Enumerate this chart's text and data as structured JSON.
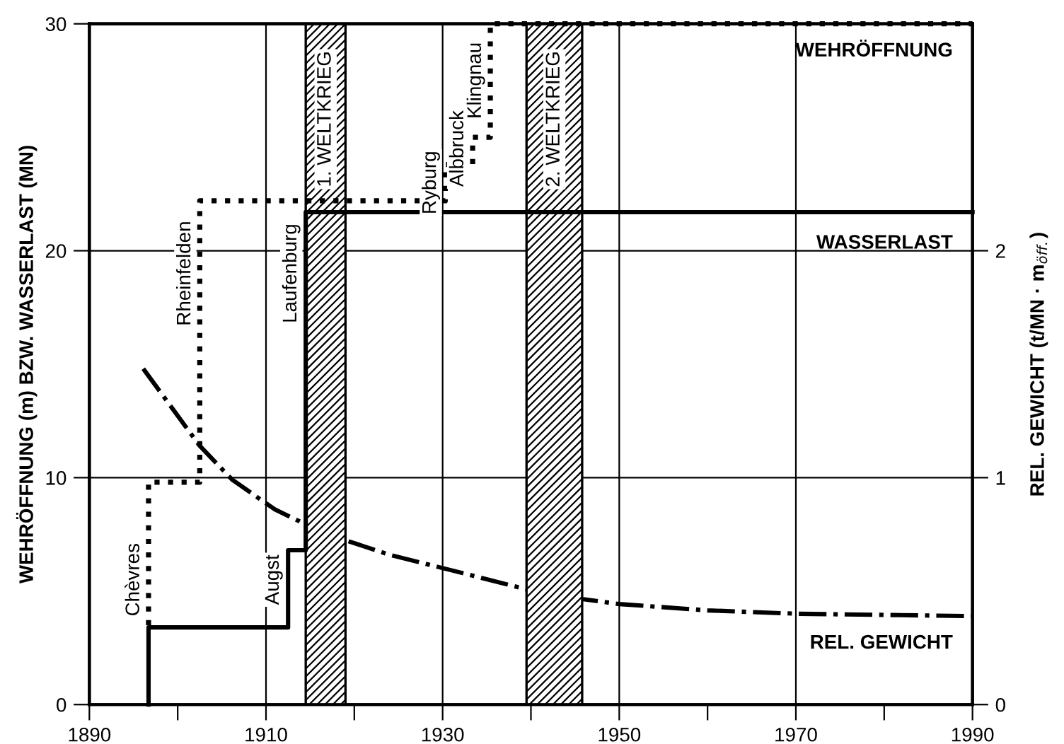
{
  "chart_data": {
    "type": "line",
    "xlabel": null,
    "ylabel": "WEHRÖFFNUNG (m) BZW. WASSERLAST (MN)",
    "y2label": "REL. GEWICHT (t/MN · m$_{öff.}$)",
    "series": [
      {
        "name": "WEHRÖFFNUNG",
        "type": "step",
        "color": "#000000",
        "line_style": "dotted",
        "x": [
          1896.7,
          1896.7,
          1902.5,
          1902.5,
          1930.3,
          1930.3,
          1933.4,
          1933.4,
          1935.4,
          1935.4,
          1990
        ],
        "values": [
          3.5,
          9.8,
          9.8,
          22.2,
          22.2,
          23.8,
          23.8,
          25,
          25,
          30,
          30
        ]
      },
      {
        "name": "WASSERLAST",
        "type": "step",
        "color": "#000000",
        "line_style": "solid",
        "x": [
          1896.7,
          1896.7,
          1912.5,
          1912.5,
          1914.5,
          1914.5,
          1990
        ],
        "values": [
          0,
          3.4,
          3.4,
          6.8,
          6.8,
          21.7,
          21.7
        ]
      },
      {
        "name": "REL. GEWICHT",
        "axis": "y2",
        "color": "#000000",
        "line_style": "dashdot",
        "x": [
          1896.1,
          1902.5,
          1906.2,
          1911,
          1916.6,
          1924,
          1932.2,
          1941.6,
          1950,
          1960,
          1970.3,
          1980,
          1990
        ],
        "values": [
          1.48,
          1.14,
          0.99,
          0.86,
          0.755,
          0.66,
          0.58,
          0.487,
          0.443,
          0.415,
          0.4,
          0.395,
          0.39
        ]
      }
    ],
    "bands": [
      {
        "axis": "x",
        "from": 1914.5,
        "to": 1919,
        "label": "1. WELTKRIEG"
      },
      {
        "axis": "x",
        "from": 1939.5,
        "to": 1945.8,
        "label": "2. WELTKRIEG"
      }
    ],
    "annotations": [
      {
        "text": "Chèvres",
        "x": 1896.7,
        "y": 5.5
      },
      {
        "text": "Rheinfelden",
        "x": 1902.5,
        "y": 19
      },
      {
        "text": "Augst",
        "x": 1912.5,
        "y": 5.5
      },
      {
        "text": "Laufenburg",
        "x": 1914.5,
        "y": 19
      },
      {
        "text": "Ryburg",
        "x": 1930.3,
        "y": 23
      },
      {
        "text": "Albbruck",
        "x": 1933.4,
        "y": 24.5
      },
      {
        "text": "Klingnau",
        "x": 1935.4,
        "y": 27.5
      }
    ],
    "xlim": [
      1890,
      1990
    ],
    "xticks": [
      1890,
      {
        "value": 1900,
        "label": null
      },
      1910,
      {
        "value": 1920,
        "label": null
      },
      1930,
      {
        "value": 1940,
        "label": null
      },
      1950,
      {
        "value": 1960,
        "label": null
      },
      1970,
      {
        "value": 1980,
        "label": null
      },
      1990
    ],
    "ylim": [
      0,
      30
    ],
    "yticks": [
      0,
      10,
      20,
      30
    ],
    "y2lim": [
      0,
      3
    ],
    "y2ticks": [
      0,
      1,
      2
    ],
    "grid": true,
    "legend": false
  }
}
